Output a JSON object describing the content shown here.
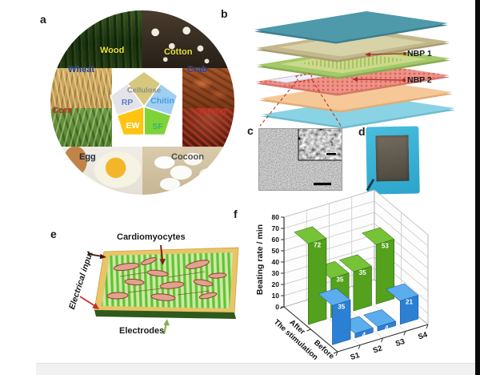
{
  "figure": {
    "type": "multi-panel scientific figure",
    "background": "#ffffff"
  },
  "panel_a": {
    "label": "a",
    "sources": [
      {
        "name": "Wood",
        "label_color": "#e8e23a"
      },
      {
        "name": "Cotton",
        "label_color": "#e8e23a"
      },
      {
        "name": "Wheat",
        "label_color": "#1e3c8c"
      },
      {
        "name": "Crab",
        "label_color": "#1e3c8c"
      },
      {
        "name": "Corn",
        "label_color": "#d63226"
      },
      {
        "name": "Shrimp",
        "label_color": "#d63226"
      },
      {
        "name": "Egg",
        "label_color": "#232c3c"
      },
      {
        "name": "Cocoon",
        "label_color": "#504c48"
      }
    ],
    "pentagon": {
      "cellulose": {
        "label": "Cellulose",
        "fill": "#d7c87f",
        "text_color": "#8e8e86"
      },
      "rp": {
        "label": "RP",
        "fill": "#e4e4e8",
        "text_color": "#5f7cc2"
      },
      "chitin": {
        "label": "Chitin",
        "fill": "#9fd0f2",
        "text_color": "#4a9ae0"
      },
      "ew": {
        "label": "EW",
        "fill": "#ffc412",
        "text_color": "#ffffff"
      },
      "sf": {
        "label": "SF",
        "fill": "#7fd338",
        "text_color": "#3bb273"
      }
    }
  },
  "panel_b": {
    "label": "b",
    "callouts": [
      {
        "label": "NBP 1"
      },
      {
        "label": "NBP 2"
      }
    ],
    "layer_colors_top_to_bottom": [
      "#4e9aab",
      "#c3b88c",
      "#a3c968",
      "#eef0fa",
      "#ef9287",
      "#f7c897",
      "#8ad3e4"
    ],
    "callout_line_color": "#b02828"
  },
  "panel_c": {
    "label": "c",
    "content": "SEM micrograph with magnified inset and scale bars"
  },
  "panel_d": {
    "label": "d",
    "content": "photo of device in blue frame"
  },
  "panel_e": {
    "label": "e",
    "annotations": {
      "top": "Cardiomyocytes",
      "left": "Electrical input",
      "bottom": "Electrodes"
    }
  },
  "panel_f": {
    "label": "f"
  },
  "chart_data": {
    "type": "bar",
    "projection": "3d",
    "title": "",
    "categories": [
      "S1",
      "S2",
      "S3",
      "S4"
    ],
    "series": [
      {
        "name": "After",
        "values": [
          72,
          35,
          35,
          53
        ],
        "face": "#53a11d",
        "top": "#76c338",
        "side": "#3d7a12",
        "edge": "#2e5f0d"
      },
      {
        "name": "Before",
        "values": [
          35,
          4,
          4,
          21
        ],
        "face": "#2c80d4",
        "top": "#5cadee",
        "side": "#1d60a8",
        "edge": "#15508f"
      }
    ],
    "ylabel": "Beating rate / min",
    "ylim": [
      0,
      80
    ],
    "ytick_step": 10,
    "depth_axis_label": "The stimulation",
    "bar_value_labels": true,
    "grid": true,
    "value_label_color": "#ffffff"
  }
}
